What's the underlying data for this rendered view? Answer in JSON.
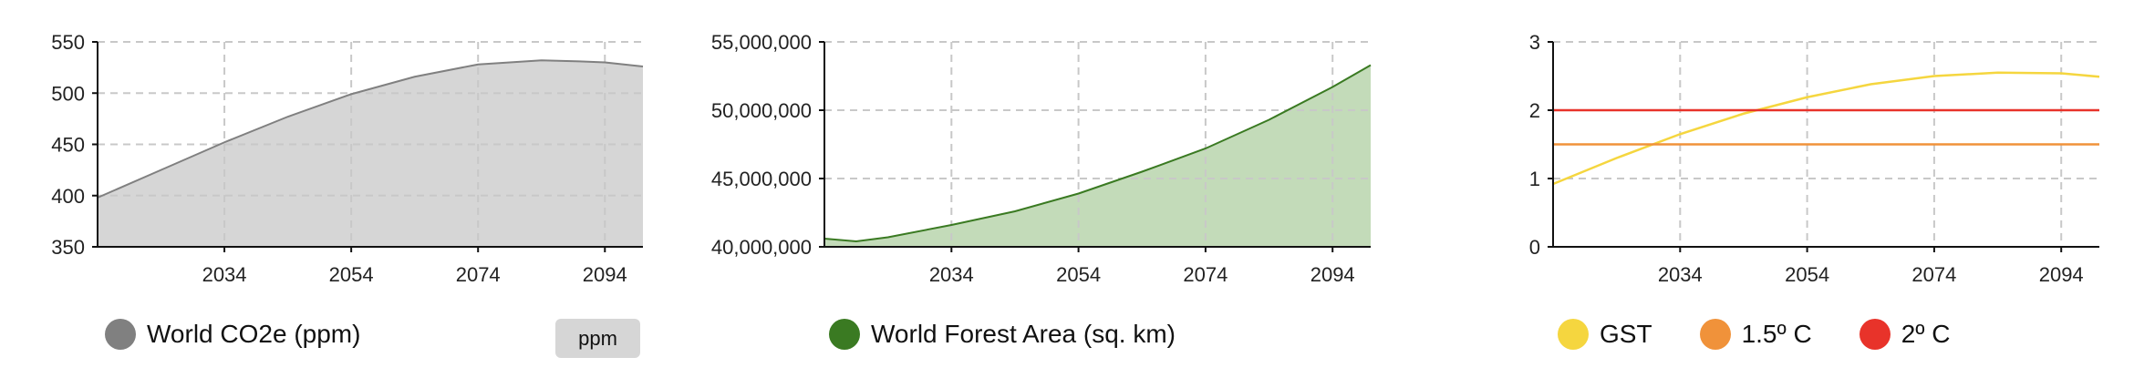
{
  "chart_data": [
    {
      "type": "area",
      "title": "",
      "xlabel": "",
      "ylabel": "",
      "x_ticks": [
        "2034",
        "2054",
        "2074",
        "2094"
      ],
      "y_ticks": [
        "550",
        "500",
        "450",
        "400",
        "350"
      ],
      "xlim": [
        2014,
        2100
      ],
      "ylim": [
        350,
        550
      ],
      "grid": true,
      "legend_position": "bottom-left",
      "series": [
        {
          "name": "World CO2e (ppm)",
          "color": "#808080",
          "fill": "#d6d6d6",
          "x": [
            2014,
            2024,
            2034,
            2044,
            2054,
            2064,
            2074,
            2084,
            2090,
            2094,
            2100
          ],
          "y": [
            398,
            425,
            452,
            477,
            499,
            516,
            528,
            532,
            531,
            530,
            526
          ]
        }
      ],
      "unit_button": "ppm"
    },
    {
      "type": "area",
      "title": "",
      "xlabel": "",
      "ylabel": "",
      "x_ticks": [
        "2034",
        "2054",
        "2074",
        "2094"
      ],
      "y_ticks": [
        "55,000,000",
        "50,000,000",
        "45,000,000",
        "40,000,000"
      ],
      "xlim": [
        2014,
        2100
      ],
      "ylim": [
        40000000,
        55000000
      ],
      "grid": true,
      "legend_position": "bottom-left",
      "series": [
        {
          "name": "World Forest Area (sq. km)",
          "color": "#3a7a22",
          "fill": "#c3dbb9",
          "x": [
            2014,
            2019,
            2024,
            2034,
            2044,
            2054,
            2064,
            2074,
            2084,
            2094,
            2100
          ],
          "y": [
            40600000,
            40400000,
            40700000,
            41600000,
            42600000,
            43900000,
            45500000,
            47200000,
            49300000,
            51700000,
            53300000
          ]
        }
      ]
    },
    {
      "type": "line",
      "title": "",
      "xlabel": "",
      "ylabel": "",
      "x_ticks": [
        "2034",
        "2054",
        "2074",
        "2094"
      ],
      "y_ticks": [
        "3",
        "2",
        "1",
        "0"
      ],
      "xlim": [
        2014,
        2100
      ],
      "ylim": [
        0,
        3
      ],
      "grid": true,
      "legend_position": "bottom-left",
      "series": [
        {
          "name": "GST",
          "color": "#f5d63f",
          "x": [
            2014,
            2024,
            2034,
            2044,
            2054,
            2064,
            2074,
            2084,
            2094,
            2100
          ],
          "y": [
            0.92,
            1.3,
            1.65,
            1.95,
            2.19,
            2.38,
            2.5,
            2.55,
            2.54,
            2.49
          ]
        },
        {
          "name": "1.5º C",
          "color": "#f0923a",
          "x": [
            2014,
            2100
          ],
          "y": [
            1.5,
            1.5
          ]
        },
        {
          "name": "2º C",
          "color": "#e8332a",
          "x": [
            2014,
            2100
          ],
          "y": [
            2,
            2
          ]
        }
      ]
    }
  ]
}
